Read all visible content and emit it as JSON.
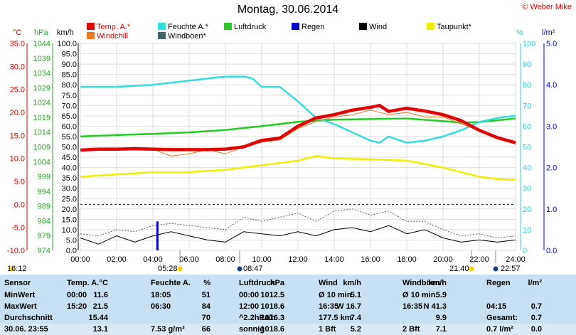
{
  "header": {
    "title": "Montag, 30.06.2014",
    "credit": "© Weber Mike"
  },
  "legend": [
    {
      "label": "Temp. A.*",
      "color": "#e00000"
    },
    {
      "label": "Feuchte A.*",
      "color": "#33dddd"
    },
    {
      "label": "Luftdruck",
      "color": "#22cc22"
    },
    {
      "label": "Regen",
      "color": "#0000cc"
    },
    {
      "label": "Wind",
      "color": "#000000"
    },
    {
      "label": "Taupunkt*",
      "color": "#eeee00"
    },
    {
      "label": "Windchill",
      "color": "#ee7722"
    },
    {
      "label": "Windböen*",
      "color": "#446666"
    }
  ],
  "axes": {
    "temp_unit": "°C",
    "hpa_unit": "hPa",
    "kmh_unit": "km/h",
    "pct_unit": "%",
    "rain_unit": "l/m²",
    "temp_ticks": [
      "35.0",
      "30.0",
      "25.0",
      "20.0",
      "15.0",
      "10.0",
      "5.0",
      "0.0",
      "-5.0",
      "-10.0"
    ],
    "hpa_ticks": [
      "1044",
      "1039",
      "1034",
      "1029",
      "1024",
      "1019",
      "1014",
      "1009",
      "1004",
      "999",
      "994",
      "989",
      "984",
      "979",
      "974"
    ],
    "kmh_ticks": [
      "100.0",
      "95.0",
      "90.0",
      "85.0",
      "80.0",
      "75.0",
      "70.0",
      "65.0",
      "60.0",
      "55.0",
      "50.0",
      "45.0",
      "40.0",
      "35.0",
      "30.0",
      "25.0",
      "20.0",
      "15.0",
      "10.0",
      "5.0",
      "0.0"
    ],
    "pct_ticks": [
      "100",
      "90",
      "80",
      "70",
      "60",
      "50",
      "40",
      "30",
      "20",
      "10",
      "0"
    ],
    "rain_ticks": [
      "5.0",
      "4.0",
      "3.0",
      "2.0",
      "1.0",
      "0.0"
    ],
    "time_ticks": [
      "00:00",
      "02:00",
      "04:00",
      "06:00",
      "08:00",
      "10:00",
      "12:00",
      "14:00",
      "16:00",
      "18:00",
      "20:00",
      "22:00",
      "24:00"
    ]
  },
  "events": {
    "sunrise_left": "16:12",
    "sunrise": "05:28",
    "moon1": "08:47",
    "sunset": "21:40",
    "moon2": "22:57"
  },
  "table": {
    "headers": [
      "Sensor",
      "Temp. A.",
      "°C",
      "Feuchte A.",
      "%",
      "Luftdruck",
      "hPa",
      "Wind",
      "km/h",
      "Windböen",
      "km/h",
      "Regen",
      "l/m²"
    ],
    "rows": [
      {
        "label": "MinWert",
        "c": [
          "00:00",
          "11.6",
          "18:05",
          "51",
          "00:00",
          "1012.5",
          "Ø 10 min.",
          "5.1",
          "Ø 10 min.",
          "5.9",
          "",
          ""
        ]
      },
      {
        "label": "MaxWert",
        "c": [
          "15:20",
          "21.5",
          "06:30",
          "84",
          "12:00",
          "1018.6",
          "16:35",
          "W 16.7",
          "16:35",
          "N 41.3",
          "04:15",
          "0.7"
        ]
      },
      {
        "label": "Durchschnitt",
        "c": [
          "",
          "15.44",
          "",
          "70",
          "^2.2hPa/h",
          "1016.3",
          "177.5 km",
          "7.4",
          "",
          "9.9",
          "Gesamt:",
          "0.7"
        ]
      },
      {
        "label": "30.06. 23:55",
        "c": [
          "",
          "13.1",
          "7.53 g/m³",
          "66",
          "sonnig",
          "↑1018.6",
          "1 Bft",
          "5.2",
          "2 Bft",
          "7.1",
          "0.7 l/m²",
          "0.0"
        ]
      }
    ]
  },
  "chart_data": {
    "type": "line",
    "title": "Montag, 30.06.2014",
    "x_unit": "hours",
    "xlim": [
      0,
      24
    ],
    "series": [
      {
        "name": "Temp. A.*",
        "axis": "°C",
        "ylim": [
          -10,
          35
        ],
        "x": [
          0,
          1,
          2,
          3,
          4,
          5,
          6,
          7,
          8,
          9,
          10,
          11,
          12,
          13,
          14,
          15,
          16,
          16.5,
          17,
          18,
          19,
          20,
          21,
          22,
          23,
          24
        ],
        "values": [
          11.8,
          12.0,
          12.0,
          12.1,
          12.0,
          11.9,
          11.9,
          11.9,
          12.0,
          12.5,
          13.9,
          14.4,
          17.0,
          18.8,
          19.5,
          20.5,
          21.1,
          21.5,
          20.2,
          20.9,
          20.3,
          19.5,
          18.2,
          16.1,
          14.5,
          13.4
        ]
      },
      {
        "name": "Feuchte A.*",
        "axis": "%",
        "ylim": [
          0,
          100
        ],
        "x": [
          0,
          2,
          4,
          6,
          7,
          8,
          9,
          9.5,
          10,
          11,
          12,
          13,
          14,
          15,
          16,
          16.5,
          17,
          18,
          19,
          20,
          21,
          22,
          23,
          24
        ],
        "values": [
          79,
          79,
          80,
          82,
          83,
          84,
          84,
          83,
          79,
          79,
          72,
          64,
          61,
          57,
          53,
          52,
          55,
          52,
          53,
          55,
          58,
          62,
          64,
          65
        ]
      },
      {
        "name": "Luftdruck",
        "axis": "hPa",
        "ylim": [
          974,
          1044
        ],
        "x": [
          0,
          2,
          4,
          6,
          8,
          10,
          12,
          14,
          16,
          18,
          20,
          21,
          22,
          24
        ],
        "values": [
          1012.5,
          1013,
          1013.4,
          1013.9,
          1014.7,
          1016,
          1017.5,
          1018.2,
          1018.4,
          1018.6,
          1017.7,
          1017.2,
          1017.4,
          1018.6
        ]
      },
      {
        "name": "Taupunkt*",
        "axis": "°C",
        "ylim": [
          -10,
          35
        ],
        "x": [
          0,
          2,
          4,
          6,
          8,
          10,
          12,
          13,
          14,
          16,
          18,
          20,
          22,
          23,
          24
        ],
        "values": [
          6,
          6.5,
          7,
          7,
          7.5,
          8.5,
          9.5,
          10.5,
          10,
          9.8,
          9.5,
          8,
          6,
          5.5,
          5.3
        ]
      },
      {
        "name": "Windchill",
        "axis": "°C",
        "ylim": [
          -10,
          35
        ],
        "x": [
          0,
          2,
          4,
          5,
          6,
          7,
          8,
          9,
          10,
          11,
          12,
          13,
          14,
          15,
          16,
          17,
          18,
          19,
          20,
          22,
          24
        ],
        "values": [
          11.8,
          12,
          12,
          10.5,
          11,
          11.9,
          11,
          12.5,
          13.5,
          14,
          16.5,
          18,
          19,
          19.5,
          20.5,
          19.5,
          20,
          19,
          19,
          16,
          13.4
        ]
      },
      {
        "name": "Wind",
        "axis": "km/h",
        "ylim": [
          0,
          100
        ],
        "x": [
          0,
          1,
          2,
          3,
          4,
          5,
          6,
          7,
          8,
          9,
          10,
          11,
          12,
          13,
          14,
          15,
          16,
          17,
          18,
          19,
          20,
          21,
          22,
          23,
          24
        ],
        "values": [
          6,
          3,
          7,
          4,
          7,
          9,
          7,
          5,
          4,
          9,
          8,
          7,
          9,
          7,
          10,
          11,
          9,
          12,
          8,
          10,
          6,
          4,
          5,
          4,
          5
        ]
      },
      {
        "name": "Windböen*",
        "axis": "km/h",
        "ylim": [
          0,
          100
        ],
        "x": [
          0,
          1,
          2,
          3,
          4,
          5,
          6,
          7,
          8,
          9,
          10,
          11,
          12,
          13,
          14,
          15,
          16,
          17,
          18,
          19,
          20,
          21,
          22,
          23,
          24
        ],
        "values": [
          8,
          7,
          10,
          9,
          12,
          13,
          12,
          11,
          10,
          16,
          14,
          16,
          18,
          14,
          19,
          20,
          17,
          19,
          14,
          14,
          10,
          7,
          8,
          6,
          7
        ]
      },
      {
        "name": "Regen",
        "axis": "l/m²",
        "ylim": [
          0,
          5
        ],
        "x": [
          4.25
        ],
        "values": [
          0.7
        ]
      }
    ],
    "reference_line": {
      "axis": "°C",
      "value": 0
    }
  }
}
